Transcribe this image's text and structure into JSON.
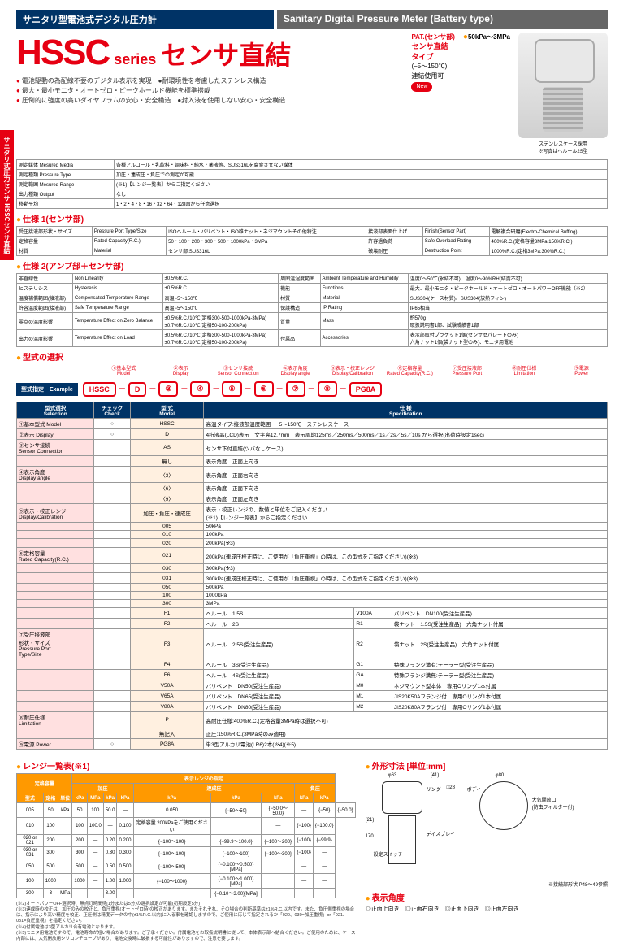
{
  "header": {
    "left_title": "サニタリ型電池式デジタル圧力計",
    "right_title": "Sanitary Digital Pressure Meter (Battery type)"
  },
  "hero": {
    "hssc": "HSSC",
    "series": "series",
    "direct": "センサ直結",
    "bullets": [
      "電池駆動の為配線不要のデジタル表示を実現　●耐環境性を考慮したステンレス構造",
      "最大・最小モニタ・オートゼロ・ピークホールド機能を標準搭載",
      "圧倒的に強度の高いダイヤフラムの安心・安全構造　●封入液を使用しない安心・安全構造"
    ],
    "pat_label": "PAT.(センサ部)",
    "sensor_type": "センサ直結\nタイプ",
    "temp": "(−5〜150℃)",
    "conn": "連結使用可",
    "new": "New",
    "spec": "50kPa〜3MPa",
    "case_note": "ステンレスケース採用\n※写真はヘルール2S型"
  },
  "side_tab": "サニタリ式圧力センサ\nHSSCセンサ直結",
  "tbl1": {
    "rows": [
      [
        "測定媒体 Mesured Media",
        "各種アルコール・乳飲料・調味料・純水・薬液等、SUS316Lを腐食させない媒体"
      ],
      [
        "測定種類 Pressure Type",
        "加圧・連成圧・負圧での測定が可能"
      ],
      [
        "測定範囲 Mesured Range",
        "(※1)【レンジ一覧表】からご指定ください"
      ],
      [
        "出力種類 Output",
        "なし"
      ],
      [
        "移動平均",
        "1・2・4・8・16・32・64・128回から任意選択"
      ]
    ]
  },
  "spec1_title": "仕様 1(センサ部)",
  "spec1": {
    "rows": [
      [
        "受圧接液部形状・サイズ",
        "Pressure Port Type/Size",
        "ISOヘルール・バリベント・ISO雄ナット・ネジマウントその他特注",
        "接液部表面仕上げ",
        "Finish(Sensor Part)",
        "電解複合研磨(Electro-Chemical Buffing)"
      ],
      [
        "定格容量",
        "Rated Capacity(R.C.)",
        "50・100・200・300・500・1000kPa・3MPa",
        "許容過負荷",
        "Safe Overload Rating",
        "400%R.C.(定格容量3MPa:150%R.C.)"
      ],
      [
        "材質",
        "Material",
        "センサ部:SUS316L",
        "破壊耐圧",
        "Destruction Point",
        "1000%R.C.(定格3MPa:300%R.C.)"
      ]
    ]
  },
  "spec2_title": "仕様 2(アンプ部＋センサ部)",
  "spec2": {
    "rows": [
      [
        "非直線性",
        "Non Linearity",
        "±0.5%R.C.",
        "周囲温湿度範囲",
        "Ambient Temperature and Humidity",
        "温度0〜50℃(氷結不可)、湿度0〜90%RH(結露不可)"
      ],
      [
        "ヒステリシス",
        "Hysteresis",
        "±0.5%R.C.",
        "機能",
        "Functions",
        "最大、最小モニタ・ピークホールド・オートゼロ・オートパワーOFF機能（※2）"
      ],
      [
        "温度補償範囲(接液部)",
        "Compensated Temperature Range",
        "高温−5〜150℃",
        "材質",
        "Material",
        "SUS304(ケース材質)、SUS304(放熱フィン)"
      ],
      [
        "許容温度範囲(接液部)",
        "Safe Temperature Range",
        "高温−5〜150℃",
        "保護構造",
        "IP Rating",
        "IP65相当"
      ],
      [
        "零点の温度影響",
        "Temperature Effect on Zero Balance",
        "±0.5%R.C./10℃(定格300-500-1000kPa-3MPa)\n±0.7%R.C./10℃(定格50-100-200kPa)",
        "質量",
        "Mass",
        "約570g\n取扱説明書1部、試験成績書1部"
      ],
      [
        "出力の温度影響",
        "Temperature Effect on Load",
        "±0.5%R.C./10℃(定格300-500-1000kPa-3MPa)\n±0.7%R.C./10℃(定格50-100-200kPa)",
        "付属品",
        "Accessories",
        "表示部取付ブラケット1個(センサセパレートのみ)\n六角ナット1個(袋ナット型のみ)、モニタ用電池"
      ]
    ]
  },
  "format": {
    "title": "型式の選択",
    "headers": [
      "①基本型式\nModel",
      "②表示\nDisplay",
      "③センサ接続\nSensor Connection",
      "④表示角度\nDisplay angle",
      "⑤表示・校正レンジ\nDisplay/Calibration",
      "⑥定格容量\nRated Capacity(R.C.)",
      "⑦受圧接液部\nPressure Port",
      "⑧耐圧仕様\nLimitation",
      "⑨電源\nPower"
    ],
    "label": "型式指定　Example",
    "boxes": [
      "HSSC",
      "D",
      "③",
      "④",
      "⑤",
      "⑥",
      "⑦",
      "⑧",
      "PG8A"
    ]
  },
  "selection": {
    "cols": [
      "型式選択\nSelection",
      "チェック\nCheck",
      "型 式\nModel",
      "仕 様\nSpecification"
    ],
    "rows": [
      [
        "①基本型式 Model",
        "○",
        "HSSC",
        "高温タイプ:接液部温度範囲　−5〜150℃　ステンレスケース"
      ],
      [
        "②表示 Display",
        "○",
        "D",
        "4桁液晶(LCD)表示　文字高12.7mm　表示周期125ms／250ms／500ms／1s／2s／5s／10s から選択(出荷時設定1sec)"
      ],
      [
        "③センサ接続\nSensor Connection",
        "",
        "AS",
        "センサ下付直結(ツバなしケース)"
      ],
      [
        "",
        "",
        "無し",
        "表示角度　正面上向き"
      ],
      [
        "④表示角度\nDisplay angle",
        "",
        "〈3〉",
        "表示角度　正面右向き"
      ],
      [
        "",
        "",
        "〈6〉",
        "表示角度　正面下向き"
      ],
      [
        "",
        "",
        "〈9〉",
        "表示角度　正面左向き"
      ],
      [
        "⑤表示・校正レンジ\nDisplay/Calibration",
        "",
        "加圧・負圧・連成圧",
        "表示・校正レンジの、数値と単位をご記入ください\n(※1)【レンジ一覧表】からご指定ください"
      ],
      [
        "",
        "",
        "005",
        "50kPa"
      ],
      [
        "",
        "",
        "010",
        "100kPa"
      ],
      [
        "",
        "",
        "020",
        "200kPa(※3)"
      ],
      [
        "⑥定格容量\nRated Capacity(R.C.)",
        "",
        "021",
        "200kPa(連成圧校正時に、ご使用が「負圧重視」の時は、この型式をご指定ください)(※3)"
      ],
      [
        "",
        "",
        "030",
        "300kPa(※3)"
      ],
      [
        "",
        "",
        "031",
        "300kPa(連成圧校正時に、ご使用が「負圧重視」の時は、この型式をご指定ください)(※3)"
      ],
      [
        "",
        "",
        "050",
        "500kPa"
      ],
      [
        "",
        "",
        "100",
        "1000kPa"
      ],
      [
        "",
        "",
        "300",
        "3MPa"
      ],
      [
        "",
        "",
        "F1",
        "ヘルール　1.5S",
        "V100A",
        "バリベント　DN100(受注生産品)"
      ],
      [
        "",
        "",
        "F2",
        "ヘルール　2S",
        "R1",
        "袋ナット　1.5S(受注生産品)　六角ナット付属"
      ],
      [
        "⑦受圧接液部\n形状・サイズ\nPressure Port\nType/Size",
        "",
        "F3",
        "ヘルール　2.5S(受注生産品)",
        "R2",
        "袋ナット　2S(受注生産品)　六角ナット付属"
      ],
      [
        "",
        "",
        "F4",
        "ヘルール　3S(受注生産品)",
        "G1",
        "特殊フランジ満有:テーラー型(受注生産品)"
      ],
      [
        "",
        "",
        "F6",
        "ヘルール　4S(受注生産品)",
        "GA",
        "特殊フランジ満無:テーラー型(受注生産品)"
      ],
      [
        "",
        "",
        "V50A",
        "バリベント　DN50(受注生産品)",
        "M0",
        "ネジマウント型本体　専用Oリング1本付属"
      ],
      [
        "",
        "",
        "V65A",
        "バリベント　DN65(受注生産品)",
        "M1",
        "JIS20K50Aフランジ付　専用Oリング1本付属"
      ],
      [
        "",
        "",
        "V80A",
        "バリベント　DN80(受注生産品)",
        "M2",
        "JIS20K80Aフランジ付　専用Oリング1本付属"
      ],
      [
        "⑧耐圧仕様\nLimitation",
        "",
        "P",
        "高耐圧仕様:400%R.C.(定格容量3MPa時は選択不可)"
      ],
      [
        "",
        "",
        "無記入",
        "正圧:150%R.C.(3MPa時のみ適用)"
      ],
      [
        "⑨電源 Power",
        "○",
        "PG8A",
        "単3型アルカリ電池(LR6)2本(※4)(※5)"
      ]
    ]
  },
  "range": {
    "title": "レンジ一覧表(※1)",
    "header1": [
      "定格容量",
      "表示レンジの指定"
    ],
    "header2": [
      "",
      "加圧",
      "連成圧",
      "負圧"
    ],
    "cols": [
      "型式",
      "定格",
      "単位",
      "kPa",
      "MPa",
      "kPa",
      "kPa",
      "kPa",
      "kPa"
    ],
    "rows": [
      [
        "005",
        "50",
        "kPa",
        "50",
        "100",
        "50.0",
        "—",
        "0.050",
        "{−50〜50}",
        "{−50.0〜50.0}",
        "—",
        "{−50}",
        "{−50.0}"
      ],
      [
        "010",
        "100",
        "",
        "100",
        "100.0",
        "—",
        "0.100",
        "定格容量 200kPaをご使用ください",
        "",
        "—",
        "{−100}",
        "{−100.0}"
      ],
      [
        "020 or 021",
        "200",
        "",
        "200",
        "—",
        "0.20",
        "0.200",
        "{−100〜100}",
        "{−99.9〜100.0}",
        "{−100〜200}",
        "{−100}",
        "{−99.9}"
      ],
      [
        "030 or 031",
        "300",
        "",
        "300",
        "—",
        "0.30",
        "0.300",
        "{−100〜100}",
        "{−100〜100}",
        "{−100〜300}",
        "{−100}",
        "—"
      ],
      [
        "050",
        "500",
        "",
        "500",
        "—",
        "0.50",
        "0.500",
        "{−100〜500}",
        "{−0.100〜0.500}[MPa]",
        "",
        "—",
        "—"
      ],
      [
        "100",
        "1000",
        "",
        "1000",
        "—",
        "1.00",
        "1.000",
        "{−100〜1000}",
        "{−0.100〜1.000}[MPa]",
        "",
        "—",
        "—"
      ],
      [
        "300",
        "3",
        "MPa",
        "—",
        "—",
        "3.00",
        "—",
        "—",
        "{−0.10〜3.00}[MPa]",
        "",
        "—",
        "—"
      ]
    ]
  },
  "notes": [
    "(※2)オートパワーOFF選択時、無点灯時間待[1分または5分]の選択設定が可能(初期設定5分)",
    "(※3)連成時の校正は、加圧のみの校正と、負圧重視(オートゼロ時)の校正があります。またそれぞれ、その場合の判断基準は±1%R.C.以内です。また、負圧側重視の場合は、指示により高い精度を校正、正圧側は精度データの中(±1%R.C.以内)に入る事を確認しますので、ご使用に応じて指定されるか「020、030=加圧重視」or「021、031=負圧重視」を指定ください。",
    "(※4)付属電池は3型アルカリ合有電池となります。",
    "(※5)モニタ用電池ですので、電池寿命が短い場合があります。ご了承ください。付属電池をお取扱説明書に従って、本体表示部へ結合ください。ご使用のために、ケース内部には、大気開放用シリコンチューブがあり、電池交換時に破損する可能性がありますので、注意を要します。"
  ],
  "dims": {
    "title": "外形寸法 [単位:mm]",
    "labels": [
      "φ63",
      "(41)",
      "リング",
      "□28",
      "大気開放口\n(防虫フィルター付)",
      "ボディ",
      "(21)",
      "170",
      "ディスプレイ",
      "設定スイッチ",
      "φ80"
    ],
    "angle_title": "表示角度",
    "angles": [
      "◎正面上向き",
      "◎正面右向き",
      "◎正面下向き",
      "◎正面左向き"
    ],
    "link": "※接続部形状 P48〜49参照"
  }
}
